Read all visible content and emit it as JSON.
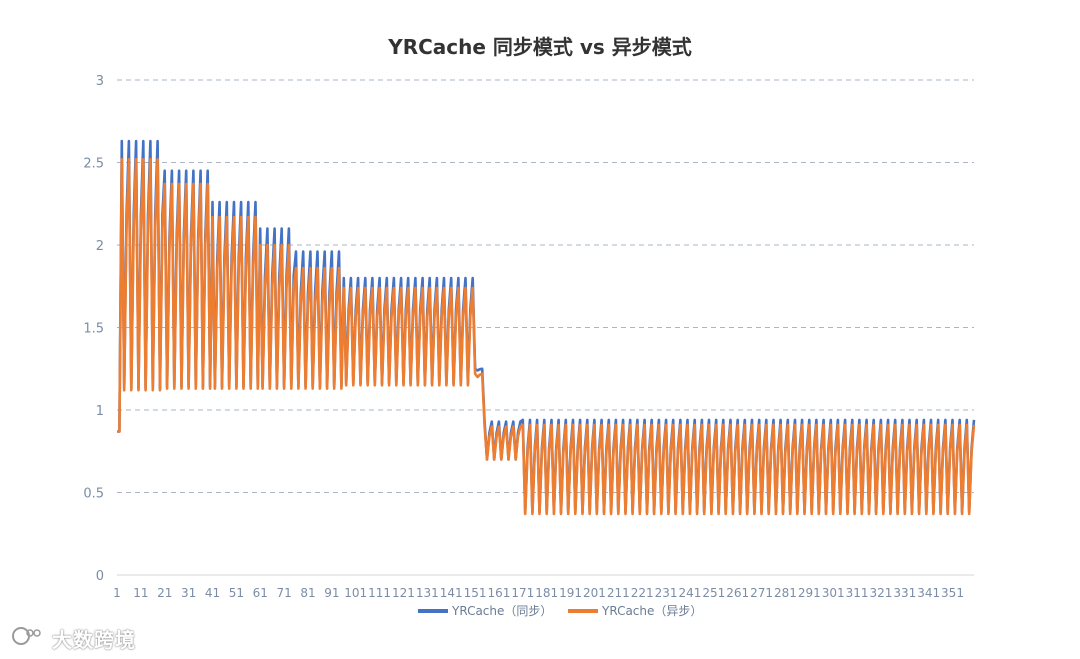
{
  "chart_data": {
    "type": "line",
    "title": "YRCache 同步模式 vs 异步模式",
    "xlabel": "",
    "ylabel": "",
    "ylim": [
      0,
      3
    ],
    "yticks": [
      "0",
      "0.5",
      "1",
      "1.5",
      "2",
      "2.5",
      "3"
    ],
    "x_range": [
      1,
      360
    ],
    "xtick_values": [
      1,
      11,
      21,
      31,
      41,
      51,
      61,
      71,
      81,
      91,
      101,
      111,
      121,
      131,
      141,
      151,
      161,
      171,
      181,
      191,
      201,
      211,
      221,
      231,
      241,
      251,
      261,
      271,
      281,
      291,
      301,
      311,
      321,
      331,
      341,
      351
    ],
    "xtick_labels": [
      "1",
      "11",
      "21",
      "31",
      "41",
      "51",
      "61",
      "71",
      "81",
      "91",
      "101",
      "111",
      "121",
      "131",
      "141",
      "151",
      "161",
      "171",
      "181",
      "191",
      "201",
      "211",
      "221",
      "231",
      "241",
      "251",
      "261",
      "271",
      "281",
      "291",
      "301",
      "311",
      "321",
      "331",
      "341",
      "351"
    ],
    "grid": true,
    "legend_position": "bottom",
    "series": [
      {
        "name": "YRCache（同步）",
        "color": "#4472c4",
        "approx_profile": [
          {
            "x": [
              1,
              2
            ],
            "low": 0.87,
            "high": 0.87
          },
          {
            "x": [
              3,
              20
            ],
            "low": 1.13,
            "high": 2.63
          },
          {
            "x": [
              21,
              40
            ],
            "low": 1.14,
            "high": 2.45
          },
          {
            "x": [
              41,
              60
            ],
            "low": 1.14,
            "high": 2.26
          },
          {
            "x": [
              61,
              75
            ],
            "low": 1.14,
            "high": 2.1
          },
          {
            "x": [
              76,
              95
            ],
            "low": 1.14,
            "high": 1.96
          },
          {
            "x": [
              96,
              150
            ],
            "low": 1.16,
            "high": 1.8
          },
          {
            "x": [
              151,
              154
            ],
            "low": 1.24,
            "high": 1.25
          },
          {
            "x": [
              155,
              170
            ],
            "low": 0.7,
            "high": 0.93
          },
          {
            "x": [
              171,
              360
            ],
            "low": 0.38,
            "high": 0.94
          }
        ]
      },
      {
        "name": "YRCache（异步）",
        "color": "#ed7d31",
        "approx_profile": [
          {
            "x": [
              1,
              2
            ],
            "low": 0.87,
            "high": 0.87
          },
          {
            "x": [
              3,
              20
            ],
            "low": 1.12,
            "high": 2.52
          },
          {
            "x": [
              21,
              40
            ],
            "low": 1.13,
            "high": 2.37
          },
          {
            "x": [
              41,
              60
            ],
            "low": 1.13,
            "high": 2.17
          },
          {
            "x": [
              61,
              75
            ],
            "low": 1.13,
            "high": 2.0
          },
          {
            "x": [
              76,
              95
            ],
            "low": 1.13,
            "high": 1.86
          },
          {
            "x": [
              96,
              150
            ],
            "low": 1.15,
            "high": 1.74
          },
          {
            "x": [
              151,
              154
            ],
            "low": 1.2,
            "high": 1.22
          },
          {
            "x": [
              155,
              170
            ],
            "low": 0.7,
            "high": 0.9
          },
          {
            "x": [
              171,
              360
            ],
            "low": 0.37,
            "high": 0.91
          }
        ]
      }
    ]
  },
  "watermark": {
    "text": "大数跨境",
    "logo": "lion-logo-icon"
  }
}
